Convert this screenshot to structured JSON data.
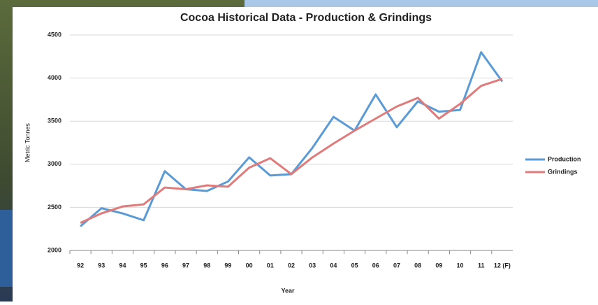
{
  "chart_data": {
    "type": "line",
    "title": "Cocoa  Historical Data - Production & Grindings",
    "x_label": "Year",
    "y_label": "Metric Tonnes",
    "categories": [
      "92",
      "93",
      "94",
      "95",
      "96",
      "97",
      "98",
      "99",
      "00",
      "01",
      "02",
      "03",
      "04",
      "05",
      "06",
      "07",
      "08",
      "09",
      "10",
      "11",
      "12 (F)"
    ],
    "series": [
      {
        "name": "Production",
        "color": "#5b9bd5",
        "values": [
          2280,
          2490,
          2430,
          2350,
          2920,
          2710,
          2690,
          2800,
          3080,
          2870,
          2885,
          3190,
          3550,
          3390,
          3810,
          3430,
          3730,
          3610,
          3630,
          4300,
          3960
        ]
      },
      {
        "name": "Grindings",
        "color": "#e07b7b",
        "values": [
          2320,
          2430,
          2510,
          2535,
          2730,
          2710,
          2755,
          2740,
          2960,
          3070,
          2885,
          3080,
          3240,
          3390,
          3530,
          3670,
          3770,
          3530,
          3700,
          3910,
          3990
        ]
      }
    ],
    "ylim": [
      2000,
      4500
    ],
    "yticks": [
      2000,
      2500,
      3000,
      3500,
      4000,
      4500
    ],
    "grid": true,
    "legend": "right"
  }
}
